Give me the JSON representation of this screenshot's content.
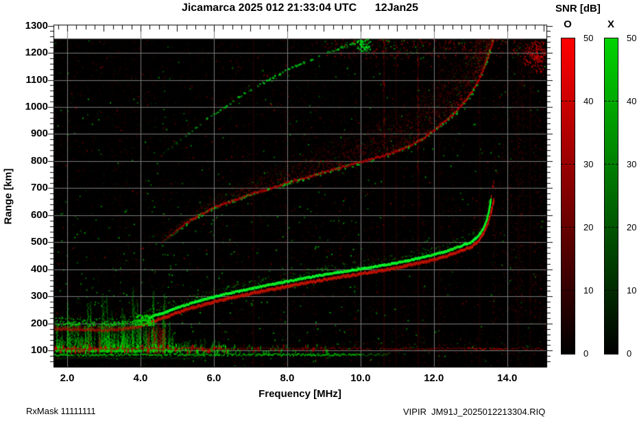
{
  "title": "Jicamarca 2025 012 21:33:04 UTC      12Jan25",
  "axes": {
    "x_label": "Frequency [MHz]",
    "y_label": "Range [km]",
    "x_tick_labels": [
      "2.0",
      "4.0",
      "6.0",
      "8.0",
      "10.0",
      "12.0",
      "14.0"
    ],
    "x_tick_values": [
      2,
      4,
      6,
      8,
      10,
      12,
      14
    ],
    "y_tick_labels": [
      "100",
      "200",
      "300",
      "400",
      "500",
      "600",
      "700",
      "800",
      "900",
      "1000",
      "1100",
      "1200",
      "1300"
    ],
    "y_tick_values": [
      100,
      200,
      300,
      400,
      500,
      600,
      700,
      800,
      900,
      1000,
      1100,
      1200,
      1300
    ]
  },
  "colorbar": {
    "heading": "SNR [dB]",
    "o_label": "O",
    "x_label": "X",
    "tick_values": [
      50,
      40,
      30,
      20,
      10,
      0
    ],
    "tick_labels": [
      "50",
      "40",
      "30",
      "20",
      "10",
      "0"
    ],
    "o_top_color": "#ff0000",
    "x_top_color": "#00d400",
    "bottom_color": "#000000"
  },
  "footer": {
    "left": "RxMask 11111111",
    "right": "VIPIR  JM91J_2025012213304.RIQ"
  },
  "chart_data": {
    "type": "heatmap",
    "title": "Jicamarca 2025 012 21:33:04 UTC 12Jan25",
    "station": "Jicamarca",
    "xlabel": "Frequency [MHz]",
    "ylabel": "Range [km]",
    "snr_scale_dB": [
      0,
      50
    ],
    "o_mode_color": "#ff0000",
    "x_mode_color": "#00d400",
    "plot_bg_color": "#000000",
    "grid_color": "#7d7d7d",
    "axes": {
      "xlim": [
        1.626,
        15.07
      ],
      "ylim": [
        40,
        1304
      ]
    },
    "data_max_range_km": 1252,
    "grid": true,
    "x_gridlines_MHz": [
      2,
      4,
      6,
      8,
      10,
      12,
      14
    ],
    "y_gridlines_km": [
      100,
      200,
      300,
      400,
      500,
      600,
      700,
      800,
      900,
      1000,
      1100,
      1200
    ],
    "series": [
      {
        "name": "F-trace-1st-hop",
        "points": [
          [
            1.65,
            202
          ],
          [
            2.2,
            200
          ],
          [
            2.8,
            198
          ],
          [
            3.3,
            200
          ],
          [
            3.7,
            205
          ],
          [
            4.0,
            214
          ],
          [
            4.3,
            230
          ],
          [
            4.7,
            248
          ],
          [
            5.0,
            263
          ],
          [
            5.5,
            285
          ],
          [
            6.0,
            303
          ],
          [
            6.5,
            319
          ],
          [
            7.0,
            333
          ],
          [
            7.5,
            347
          ],
          [
            8.0,
            360
          ],
          [
            8.5,
            373
          ],
          [
            9.0,
            385
          ],
          [
            9.5,
            396
          ],
          [
            10.0,
            406
          ],
          [
            10.5,
            417
          ],
          [
            11.0,
            429
          ],
          [
            11.5,
            443
          ],
          [
            12.0,
            459
          ],
          [
            12.4,
            475
          ],
          [
            12.7,
            490
          ],
          [
            13.0,
            505
          ],
          [
            13.2,
            528
          ],
          [
            13.33,
            555
          ],
          [
            13.42,
            585
          ],
          [
            13.48,
            615
          ],
          [
            13.52,
            645
          ],
          [
            13.54,
            665
          ]
        ]
      },
      {
        "name": "F-trace-O-extension",
        "points": [
          [
            13.55,
            675
          ],
          [
            13.58,
            695
          ],
          [
            13.6,
            715
          ],
          [
            13.63,
            735
          ]
        ]
      },
      {
        "name": "F-trace-2nd-hop",
        "points": [
          [
            4.55,
            505
          ],
          [
            4.85,
            535
          ],
          [
            5.2,
            572
          ],
          [
            5.6,
            605
          ],
          [
            6.0,
            632
          ],
          [
            6.5,
            657
          ],
          [
            7.0,
            682
          ],
          [
            7.5,
            701
          ],
          [
            8.0,
            724
          ],
          [
            8.5,
            743
          ],
          [
            9.0,
            763
          ],
          [
            9.35,
            776
          ],
          [
            9.8,
            793
          ],
          [
            10.2,
            808
          ],
          [
            10.7,
            828
          ],
          [
            11.2,
            852
          ],
          [
            11.7,
            888
          ],
          [
            12.1,
            930
          ],
          [
            12.5,
            975
          ],
          [
            12.8,
            1020
          ],
          [
            13.1,
            1075
          ],
          [
            13.3,
            1130
          ],
          [
            13.45,
            1185
          ],
          [
            13.55,
            1230
          ],
          [
            13.62,
            1252
          ]
        ]
      },
      {
        "name": "F-trace-3rd-hop",
        "points": [
          [
            4.5,
            820
          ],
          [
            5.0,
            875
          ],
          [
            5.5,
            928
          ],
          [
            6.0,
            978
          ],
          [
            6.5,
            1025
          ],
          [
            7.0,
            1068
          ],
          [
            7.5,
            1105
          ],
          [
            8.0,
            1140
          ],
          [
            8.5,
            1172
          ],
          [
            9.0,
            1200
          ],
          [
            9.5,
            1226
          ],
          [
            10.0,
            1245
          ],
          [
            10.2,
            1252
          ]
        ]
      },
      {
        "name": "E-layer-echo",
        "range_km": 100,
        "f_span_MHz": [
          1.65,
          14.6
        ]
      },
      {
        "name": "E-layer-lower-echo",
        "range_km": 82,
        "f_span_MHz": [
          1.65,
          10.5
        ]
      }
    ],
    "rfi_stripes_MHz": [
      7.06,
      10.62,
      10.95,
      11.55,
      12.12,
      13.23,
      14.28,
      14.6
    ]
  }
}
